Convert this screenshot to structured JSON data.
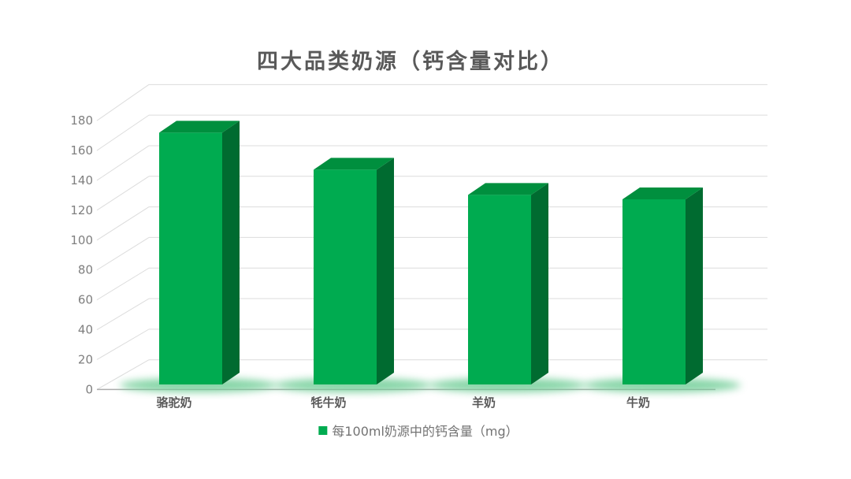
{
  "chart_data": {
    "type": "bar",
    "variant": "3d-column",
    "title": "四大品类奶源（钙含量对比）",
    "categories": [
      "骆驼奶",
      "牦牛奶",
      "羊奶",
      "牛奶"
    ],
    "series": [
      {
        "name": "每100ml奶源中的钙含量（mg）",
        "values": [
          170,
          145,
          128,
          125
        ]
      }
    ],
    "ylim": [
      0,
      180
    ],
    "ytick_step": 20,
    "yticks": [
      0,
      20,
      40,
      60,
      80,
      100,
      120,
      140,
      160,
      180
    ],
    "grid": true,
    "legend_position": "bottom",
    "colors": {
      "bar_front": "#00AB50",
      "bar_top": "#008F3E",
      "bar_side": "#006B30",
      "bar_glow": "#6FCD96",
      "gridline": "#DCDCDC",
      "axis_line": "#ACACAC",
      "title_text": "#595959",
      "axis_text": "#7F7F7F",
      "category_text": "#595959",
      "legend_text": "#737373",
      "background": "#FFFFFF"
    }
  }
}
